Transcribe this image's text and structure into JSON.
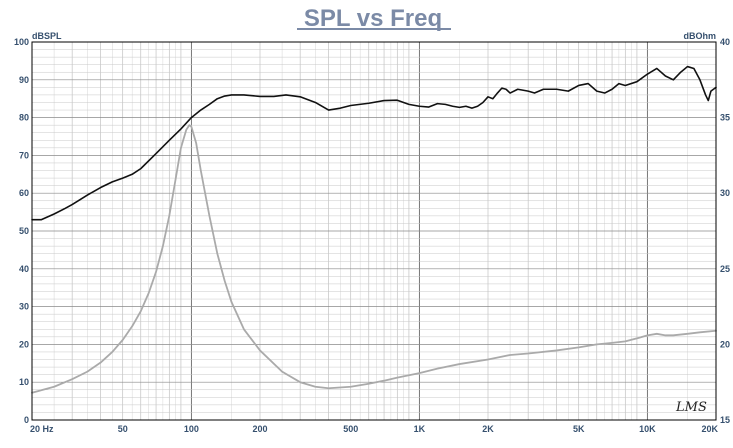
{
  "chart_data": {
    "type": "line",
    "title": "SPL vs Freq",
    "ylabel_left": "dBSPL",
    "ylabel_right": "dBOhm",
    "x_scale": "log",
    "xlim": [
      20,
      20000
    ],
    "ylim_left": [
      0,
      100
    ],
    "ylim_right": [
      15,
      40
    ],
    "grid": true,
    "x_ticks": [
      {
        "value": 20,
        "label": "20  Hz"
      },
      {
        "value": 50,
        "label": "50"
      },
      {
        "value": 100,
        "label": "100"
      },
      {
        "value": 200,
        "label": "200"
      },
      {
        "value": 500,
        "label": "500"
      },
      {
        "value": 1000,
        "label": "1K"
      },
      {
        "value": 2000,
        "label": "2K"
      },
      {
        "value": 5000,
        "label": "5K"
      },
      {
        "value": 10000,
        "label": "10K"
      },
      {
        "value": 20000,
        "label": "20K"
      }
    ],
    "y_ticks_left": [
      "0",
      "10",
      "20",
      "30",
      "40",
      "50",
      "60",
      "70",
      "80",
      "90",
      "100"
    ],
    "y_ticks_right": [
      "15",
      "20",
      "25",
      "30",
      "35",
      "40"
    ],
    "series": [
      {
        "axis": "left",
        "color": "#111111",
        "points": [
          [
            20,
            53
          ],
          [
            22,
            53
          ],
          [
            25,
            54.5
          ],
          [
            28,
            56
          ],
          [
            30,
            57
          ],
          [
            35,
            59.5
          ],
          [
            40,
            61.5
          ],
          [
            45,
            63
          ],
          [
            50,
            64
          ],
          [
            55,
            65
          ],
          [
            60,
            66.5
          ],
          [
            70,
            70.5
          ],
          [
            80,
            74
          ],
          [
            90,
            77
          ],
          [
            100,
            80
          ],
          [
            110,
            82
          ],
          [
            120,
            83.5
          ],
          [
            130,
            85
          ],
          [
            140,
            85.7
          ],
          [
            150,
            86
          ],
          [
            170,
            86
          ],
          [
            200,
            85.6
          ],
          [
            230,
            85.6
          ],
          [
            260,
            86
          ],
          [
            300,
            85.5
          ],
          [
            350,
            84
          ],
          [
            400,
            82
          ],
          [
            450,
            82.5
          ],
          [
            500,
            83.2
          ],
          [
            600,
            83.8
          ],
          [
            700,
            84.5
          ],
          [
            800,
            84.6
          ],
          [
            900,
            83.5
          ],
          [
            1000,
            83
          ],
          [
            1100,
            82.8
          ],
          [
            1200,
            83.7
          ],
          [
            1300,
            83.5
          ],
          [
            1400,
            83
          ],
          [
            1500,
            82.7
          ],
          [
            1600,
            83
          ],
          [
            1700,
            82.5
          ],
          [
            1800,
            83
          ],
          [
            1900,
            84
          ],
          [
            2000,
            85.5
          ],
          [
            2100,
            85
          ],
          [
            2200,
            86.5
          ],
          [
            2300,
            87.8
          ],
          [
            2400,
            87.5
          ],
          [
            2500,
            86.5
          ],
          [
            2700,
            87.5
          ],
          [
            3000,
            87
          ],
          [
            3200,
            86.5
          ],
          [
            3500,
            87.5
          ],
          [
            4000,
            87.5
          ],
          [
            4500,
            87
          ],
          [
            5000,
            88.5
          ],
          [
            5500,
            89
          ],
          [
            6000,
            87
          ],
          [
            6500,
            86.5
          ],
          [
            7000,
            87.5
          ],
          [
            7500,
            89
          ],
          [
            8000,
            88.5
          ],
          [
            9000,
            89.5
          ],
          [
            10000,
            91.5
          ],
          [
            11000,
            93
          ],
          [
            12000,
            91
          ],
          [
            13000,
            90
          ],
          [
            14000,
            92
          ],
          [
            15000,
            93.5
          ],
          [
            16000,
            93
          ],
          [
            17000,
            90
          ],
          [
            18000,
            86
          ],
          [
            18500,
            84.5
          ],
          [
            19000,
            87
          ],
          [
            20000,
            88
          ]
        ]
      },
      {
        "axis": "right",
        "color": "#aaaaaa",
        "points": [
          [
            20,
            16.8
          ],
          [
            25,
            17.2
          ],
          [
            30,
            17.7
          ],
          [
            35,
            18.2
          ],
          [
            40,
            18.8
          ],
          [
            45,
            19.5
          ],
          [
            50,
            20.3
          ],
          [
            55,
            21.2
          ],
          [
            60,
            22.2
          ],
          [
            65,
            23.4
          ],
          [
            70,
            24.8
          ],
          [
            75,
            26.5
          ],
          [
            80,
            28.5
          ],
          [
            85,
            30.8
          ],
          [
            90,
            33
          ],
          [
            95,
            34.2
          ],
          [
            98,
            34.5
          ],
          [
            100,
            34.4
          ],
          [
            105,
            33.3
          ],
          [
            110,
            31.5
          ],
          [
            120,
            28.5
          ],
          [
            130,
            26
          ],
          [
            140,
            24.2
          ],
          [
            150,
            22.8
          ],
          [
            170,
            21
          ],
          [
            200,
            19.6
          ],
          [
            250,
            18.2
          ],
          [
            300,
            17.5
          ],
          [
            350,
            17.2
          ],
          [
            400,
            17.1
          ],
          [
            500,
            17.2
          ],
          [
            600,
            17.4
          ],
          [
            700,
            17.6
          ],
          [
            800,
            17.8
          ],
          [
            1000,
            18.1
          ],
          [
            1200,
            18.4
          ],
          [
            1500,
            18.7
          ],
          [
            2000,
            19.0
          ],
          [
            2500,
            19.3
          ],
          [
            3000,
            19.4
          ],
          [
            4000,
            19.6
          ],
          [
            5000,
            19.8
          ],
          [
            6000,
            20
          ],
          [
            7000,
            20.1
          ],
          [
            8000,
            20.2
          ],
          [
            9000,
            20.4
          ],
          [
            10000,
            20.6
          ],
          [
            11000,
            20.7
          ],
          [
            12000,
            20.6
          ],
          [
            13000,
            20.6
          ],
          [
            15000,
            20.7
          ],
          [
            17000,
            20.8
          ],
          [
            20000,
            20.9
          ]
        ]
      }
    ],
    "logo": "LMS"
  }
}
